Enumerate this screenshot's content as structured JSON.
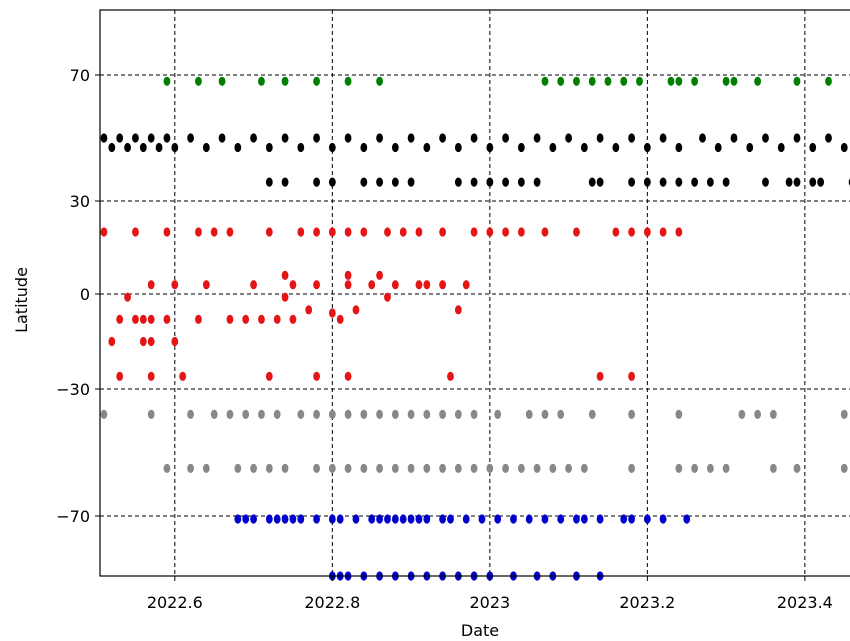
{
  "chart_data": {
    "type": "scatter",
    "title": "",
    "xlabel": "Date",
    "ylabel": "Latitude",
    "xlim": [
      2022.505,
      2023.47
    ],
    "ylim": [
      -90,
      90
    ],
    "grid": true,
    "x_ticks": [
      2022.6,
      2022.8,
      2023.0,
      2023.2,
      2023.4
    ],
    "x_tick_labels": [
      "2022.6",
      "2022.8",
      "2023",
      "2023.2",
      "2023.4"
    ],
    "y_ticks": [
      70,
      30,
      0,
      -30,
      -70
    ],
    "y_tick_labels": [
      "70",
      "30",
      "0",
      "−30",
      "−70"
    ],
    "series": [
      {
        "color": "#007f00",
        "points": [
          [
            2022.59,
            68
          ],
          [
            2022.63,
            68
          ],
          [
            2022.66,
            68
          ],
          [
            2022.71,
            68
          ],
          [
            2022.74,
            68
          ],
          [
            2022.78,
            68
          ],
          [
            2022.82,
            68
          ],
          [
            2022.86,
            68
          ],
          [
            2023.07,
            68
          ],
          [
            2023.09,
            68
          ],
          [
            2023.11,
            68
          ],
          [
            2023.13,
            68
          ],
          [
            2023.15,
            68
          ],
          [
            2023.17,
            68
          ],
          [
            2023.19,
            68
          ],
          [
            2023.23,
            68
          ],
          [
            2023.24,
            68
          ],
          [
            2023.26,
            68
          ],
          [
            2023.3,
            68
          ],
          [
            2023.31,
            68
          ],
          [
            2023.34,
            68
          ],
          [
            2023.39,
            68
          ],
          [
            2023.43,
            68
          ],
          [
            2023.47,
            68
          ]
        ]
      },
      {
        "color": "#000000",
        "points": [
          [
            2022.51,
            50
          ],
          [
            2022.52,
            47
          ],
          [
            2022.53,
            50
          ],
          [
            2022.54,
            47
          ],
          [
            2022.55,
            50
          ],
          [
            2022.56,
            47
          ],
          [
            2022.57,
            50
          ],
          [
            2022.58,
            47
          ],
          [
            2022.59,
            50
          ],
          [
            2022.6,
            47
          ],
          [
            2022.62,
            50
          ],
          [
            2022.64,
            47
          ],
          [
            2022.66,
            50
          ],
          [
            2022.68,
            47
          ],
          [
            2022.7,
            50
          ],
          [
            2022.72,
            47
          ],
          [
            2022.74,
            50
          ],
          [
            2022.76,
            47
          ],
          [
            2022.78,
            50
          ],
          [
            2022.8,
            47
          ],
          [
            2022.82,
            50
          ],
          [
            2022.84,
            47
          ],
          [
            2022.86,
            50
          ],
          [
            2022.88,
            47
          ],
          [
            2022.9,
            50
          ],
          [
            2022.92,
            47
          ],
          [
            2022.94,
            50
          ],
          [
            2022.96,
            47
          ],
          [
            2022.98,
            50
          ],
          [
            2023.0,
            47
          ],
          [
            2023.02,
            50
          ],
          [
            2023.04,
            47
          ],
          [
            2023.06,
            50
          ],
          [
            2023.08,
            47
          ],
          [
            2023.1,
            50
          ],
          [
            2023.12,
            47
          ],
          [
            2023.14,
            50
          ],
          [
            2023.16,
            47
          ],
          [
            2023.18,
            50
          ],
          [
            2023.2,
            47
          ],
          [
            2023.22,
            50
          ],
          [
            2023.24,
            47
          ],
          [
            2023.27,
            50
          ],
          [
            2023.29,
            47
          ],
          [
            2023.31,
            50
          ],
          [
            2023.33,
            47
          ],
          [
            2023.35,
            50
          ],
          [
            2023.37,
            47
          ],
          [
            2023.39,
            50
          ],
          [
            2023.41,
            47
          ],
          [
            2023.43,
            50
          ],
          [
            2023.45,
            47
          ],
          [
            2023.47,
            50
          ],
          [
            2022.72,
            36
          ],
          [
            2022.74,
            36
          ],
          [
            2022.78,
            36
          ],
          [
            2022.8,
            36
          ],
          [
            2022.84,
            36
          ],
          [
            2022.86,
            36
          ],
          [
            2022.88,
            36
          ],
          [
            2022.9,
            36
          ],
          [
            2022.96,
            36
          ],
          [
            2022.98,
            36
          ],
          [
            2023.0,
            36
          ],
          [
            2023.02,
            36
          ],
          [
            2023.04,
            36
          ],
          [
            2023.06,
            36
          ],
          [
            2023.13,
            36
          ],
          [
            2023.14,
            36
          ],
          [
            2023.18,
            36
          ],
          [
            2023.2,
            36
          ],
          [
            2023.22,
            36
          ],
          [
            2023.24,
            36
          ],
          [
            2023.26,
            36
          ],
          [
            2023.28,
            36
          ],
          [
            2023.3,
            36
          ],
          [
            2023.35,
            36
          ],
          [
            2023.38,
            36
          ],
          [
            2023.39,
            36
          ],
          [
            2023.41,
            36
          ],
          [
            2023.42,
            36
          ],
          [
            2023.46,
            36
          ]
        ]
      },
      {
        "color": "#e51515",
        "points": [
          [
            2022.51,
            20
          ],
          [
            2022.55,
            20
          ],
          [
            2022.59,
            20
          ],
          [
            2022.63,
            20
          ],
          [
            2022.65,
            20
          ],
          [
            2022.67,
            20
          ],
          [
            2022.72,
            20
          ],
          [
            2022.76,
            20
          ],
          [
            2022.78,
            20
          ],
          [
            2022.8,
            20
          ],
          [
            2022.82,
            20
          ],
          [
            2022.84,
            20
          ],
          [
            2022.87,
            20
          ],
          [
            2022.89,
            20
          ],
          [
            2022.91,
            20
          ],
          [
            2022.94,
            20
          ],
          [
            2022.98,
            20
          ],
          [
            2023.0,
            20
          ],
          [
            2023.02,
            20
          ],
          [
            2023.04,
            20
          ],
          [
            2023.07,
            20
          ],
          [
            2023.11,
            20
          ],
          [
            2023.16,
            20
          ],
          [
            2023.18,
            20
          ],
          [
            2023.2,
            20
          ],
          [
            2023.22,
            20
          ],
          [
            2023.24,
            20
          ],
          [
            2022.52,
            -15
          ],
          [
            2022.53,
            -8
          ],
          [
            2022.54,
            -1
          ],
          [
            2022.55,
            -8
          ],
          [
            2022.56,
            -15
          ],
          [
            2022.56,
            -8
          ],
          [
            2022.57,
            -8
          ],
          [
            2022.57,
            -15
          ],
          [
            2022.57,
            3
          ],
          [
            2022.59,
            -8
          ],
          [
            2022.6,
            3
          ],
          [
            2022.6,
            -15
          ],
          [
            2022.63,
            -8
          ],
          [
            2022.64,
            3
          ],
          [
            2022.67,
            -8
          ],
          [
            2022.69,
            -8
          ],
          [
            2022.7,
            3
          ],
          [
            2022.71,
            -8
          ],
          [
            2022.73,
            -8
          ],
          [
            2022.74,
            -1
          ],
          [
            2022.74,
            6
          ],
          [
            2022.75,
            3
          ],
          [
            2022.75,
            -8
          ],
          [
            2022.77,
            -5
          ],
          [
            2022.78,
            3
          ],
          [
            2022.8,
            -6
          ],
          [
            2022.81,
            -8
          ],
          [
            2022.82,
            6
          ],
          [
            2022.82,
            3
          ],
          [
            2022.83,
            -5
          ],
          [
            2022.85,
            3
          ],
          [
            2022.86,
            6
          ],
          [
            2022.87,
            -1
          ],
          [
            2022.88,
            3
          ],
          [
            2022.91,
            3
          ],
          [
            2022.92,
            3
          ],
          [
            2022.94,
            3
          ],
          [
            2022.96,
            -5
          ],
          [
            2022.97,
            3
          ],
          [
            2022.53,
            -26
          ],
          [
            2022.57,
            -26
          ],
          [
            2022.61,
            -26
          ],
          [
            2022.72,
            -26
          ],
          [
            2022.78,
            -26
          ],
          [
            2022.82,
            -26
          ],
          [
            2022.95,
            -26
          ],
          [
            2023.14,
            -26
          ],
          [
            2023.18,
            -26
          ]
        ]
      },
      {
        "color": "#888888",
        "points": [
          [
            2022.51,
            -38
          ],
          [
            2022.57,
            -38
          ],
          [
            2022.62,
            -38
          ],
          [
            2022.65,
            -38
          ],
          [
            2022.67,
            -38
          ],
          [
            2022.69,
            -38
          ],
          [
            2022.71,
            -38
          ],
          [
            2022.73,
            -38
          ],
          [
            2022.76,
            -38
          ],
          [
            2022.78,
            -38
          ],
          [
            2022.8,
            -38
          ],
          [
            2022.82,
            -38
          ],
          [
            2022.84,
            -38
          ],
          [
            2022.86,
            -38
          ],
          [
            2022.88,
            -38
          ],
          [
            2022.9,
            -38
          ],
          [
            2022.92,
            -38
          ],
          [
            2022.94,
            -38
          ],
          [
            2022.96,
            -38
          ],
          [
            2022.98,
            -38
          ],
          [
            2023.01,
            -38
          ],
          [
            2023.05,
            -38
          ],
          [
            2023.07,
            -38
          ],
          [
            2023.09,
            -38
          ],
          [
            2023.13,
            -38
          ],
          [
            2023.18,
            -38
          ],
          [
            2023.24,
            -38
          ],
          [
            2023.32,
            -38
          ],
          [
            2023.34,
            -38
          ],
          [
            2023.36,
            -38
          ],
          [
            2023.45,
            -38
          ],
          [
            2022.59,
            -55
          ],
          [
            2022.62,
            -55
          ],
          [
            2022.64,
            -55
          ],
          [
            2022.68,
            -55
          ],
          [
            2022.7,
            -55
          ],
          [
            2022.72,
            -55
          ],
          [
            2022.74,
            -55
          ],
          [
            2022.78,
            -55
          ],
          [
            2022.8,
            -55
          ],
          [
            2022.82,
            -55
          ],
          [
            2022.84,
            -55
          ],
          [
            2022.86,
            -55
          ],
          [
            2022.88,
            -55
          ],
          [
            2022.9,
            -55
          ],
          [
            2022.92,
            -55
          ],
          [
            2022.94,
            -55
          ],
          [
            2022.96,
            -55
          ],
          [
            2022.98,
            -55
          ],
          [
            2023.0,
            -55
          ],
          [
            2023.02,
            -55
          ],
          [
            2023.04,
            -55
          ],
          [
            2023.06,
            -55
          ],
          [
            2023.08,
            -55
          ],
          [
            2023.1,
            -55
          ],
          [
            2023.12,
            -55
          ],
          [
            2023.18,
            -55
          ],
          [
            2023.24,
            -55
          ],
          [
            2023.26,
            -55
          ],
          [
            2023.28,
            -55
          ],
          [
            2023.3,
            -55
          ],
          [
            2023.36,
            -55
          ],
          [
            2023.39,
            -55
          ],
          [
            2023.45,
            -55
          ]
        ]
      },
      {
        "color": "#0000cc",
        "points": [
          [
            2022.68,
            -71
          ],
          [
            2022.69,
            -71
          ],
          [
            2022.7,
            -71
          ],
          [
            2022.72,
            -71
          ],
          [
            2022.73,
            -71
          ],
          [
            2022.74,
            -71
          ],
          [
            2022.75,
            -71
          ],
          [
            2022.76,
            -71
          ],
          [
            2022.78,
            -71
          ],
          [
            2022.8,
            -71
          ],
          [
            2022.81,
            -71
          ],
          [
            2022.83,
            -71
          ],
          [
            2022.85,
            -71
          ],
          [
            2022.86,
            -71
          ],
          [
            2022.87,
            -71
          ],
          [
            2022.88,
            -71
          ],
          [
            2022.89,
            -71
          ],
          [
            2022.9,
            -71
          ],
          [
            2022.91,
            -71
          ],
          [
            2022.92,
            -71
          ],
          [
            2022.94,
            -71
          ],
          [
            2022.95,
            -71
          ],
          [
            2022.97,
            -71
          ],
          [
            2022.99,
            -71
          ],
          [
            2023.01,
            -71
          ],
          [
            2023.03,
            -71
          ],
          [
            2023.05,
            -71
          ],
          [
            2023.07,
            -71
          ],
          [
            2023.09,
            -71
          ],
          [
            2023.11,
            -71
          ],
          [
            2023.12,
            -71
          ],
          [
            2023.14,
            -71
          ],
          [
            2023.17,
            -71
          ],
          [
            2023.18,
            -71
          ],
          [
            2023.2,
            -71
          ],
          [
            2023.22,
            -71
          ],
          [
            2023.25,
            -71
          ],
          [
            2022.8,
            -90
          ],
          [
            2022.81,
            -90
          ],
          [
            2022.82,
            -90
          ],
          [
            2022.84,
            -90
          ],
          [
            2022.86,
            -90
          ],
          [
            2022.88,
            -90
          ],
          [
            2022.9,
            -90
          ],
          [
            2022.92,
            -90
          ],
          [
            2022.94,
            -90
          ],
          [
            2022.96,
            -90
          ],
          [
            2022.98,
            -90
          ],
          [
            2023.0,
            -90
          ],
          [
            2023.03,
            -90
          ],
          [
            2023.06,
            -90
          ],
          [
            2023.08,
            -90
          ],
          [
            2023.11,
            -90
          ],
          [
            2023.14,
            -90
          ]
        ]
      }
    ]
  }
}
